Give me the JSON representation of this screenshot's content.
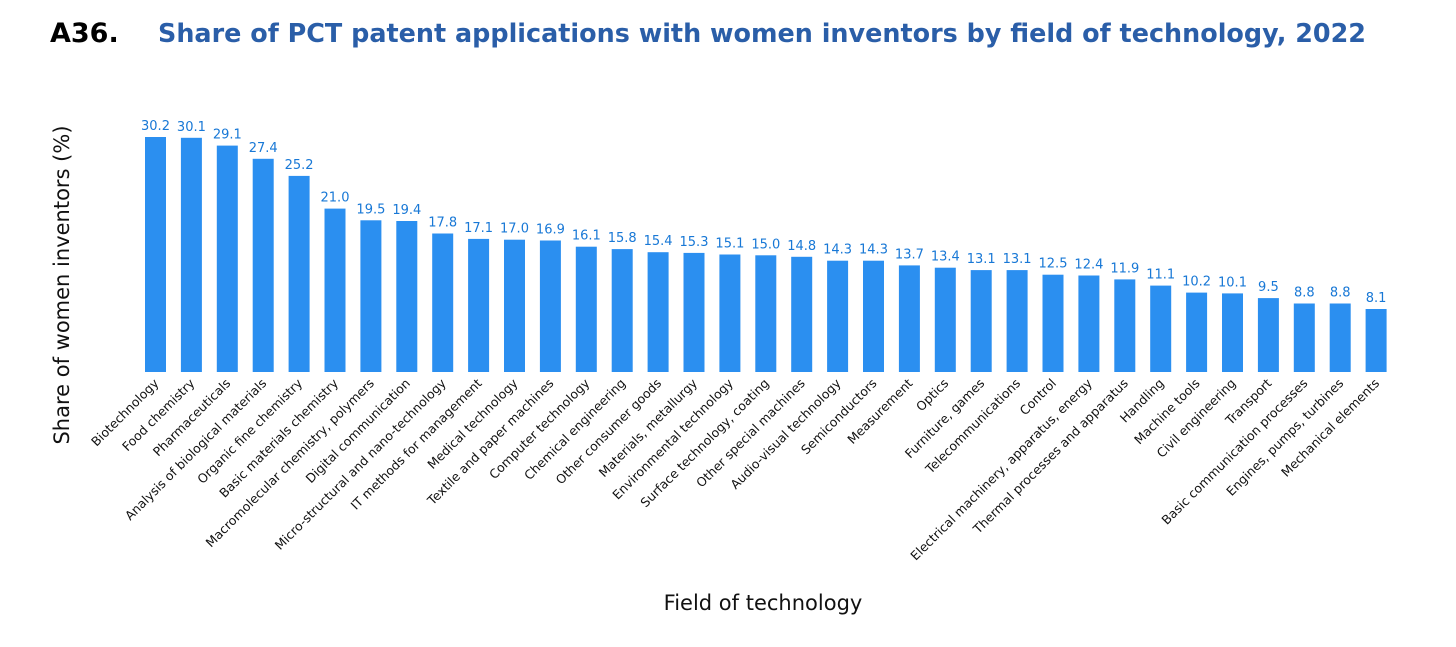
{
  "figure": {
    "id": "A36.",
    "title": "Share of PCT patent applications with women inventors by field of technology, 2022"
  },
  "chart_data": {
    "type": "bar",
    "title": "Share of PCT patent applications with women inventors by field of technology, 2022",
    "xlabel": "Field of technology",
    "ylabel": "Share of women inventors (%)",
    "ylim": [
      0,
      30.2
    ],
    "grid": false,
    "legend": "none",
    "bar_color": "#2b8ff0",
    "label_color": "#1878d6",
    "categories": [
      "Biotechnology",
      "Food chemistry",
      "Pharmaceuticals",
      "Analysis of biological materials",
      "Organic fine chemistry",
      "Basic materials chemistry",
      "Macromolecular chemistry, polymers",
      "Digital communication",
      "Micro-structural and nano-technology",
      "IT methods for management",
      "Medical technology",
      "Textile and paper machines",
      "Computer technology",
      "Chemical engineering",
      "Other consumer goods",
      "Materials, metallurgy",
      "Environmental technology",
      "Surface technology, coating",
      "Other special machines",
      "Audio-visual technology",
      "Semiconductors",
      "Measurement",
      "Optics",
      "Furniture, games",
      "Telecommunications",
      "Control",
      "Electrical machinery, apparatus, energy",
      "Thermal processes and apparatus",
      "Handling",
      "Machine tools",
      "Civil engineering",
      "Transport",
      "Basic communication processes",
      "Engines, pumps, turbines",
      "Mechanical elements"
    ],
    "values": [
      30.2,
      30.1,
      29.1,
      27.4,
      25.2,
      21.0,
      19.5,
      19.4,
      17.8,
      17.1,
      17.0,
      16.9,
      16.1,
      15.8,
      15.4,
      15.3,
      15.1,
      15.0,
      14.8,
      14.3,
      14.3,
      13.7,
      13.4,
      13.1,
      13.1,
      12.5,
      12.4,
      11.9,
      11.1,
      10.2,
      10.1,
      9.5,
      8.8,
      8.8,
      8.1
    ],
    "value_labels": [
      "30.2",
      "30.1",
      "29.1",
      "27.4",
      "25.2",
      "21.0",
      "19.5",
      "19.4",
      "17.8",
      "17.1",
      "17.0",
      "16.9",
      "16.1",
      "15.8",
      "15.4",
      "15.3",
      "15.1",
      "15.0",
      "14.8",
      "14.3",
      "14.3",
      "13.7",
      "13.4",
      "13.1",
      "13.1",
      "12.5",
      "12.4",
      "11.9",
      "11.1",
      "10.2",
      "10.1",
      "9.5",
      "8.8",
      "8.8",
      "8.1"
    ]
  }
}
